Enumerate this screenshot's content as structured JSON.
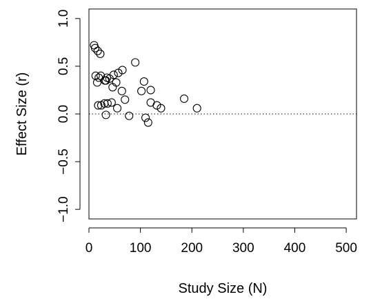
{
  "chart_data": {
    "type": "scatter",
    "xlabel": "Study Size (N)",
    "ylabel": "Effect Size (r)",
    "xlim": [
      0,
      520
    ],
    "ylim": [
      -1.1,
      1.1
    ],
    "x_ticks": [
      0,
      100,
      200,
      300,
      400,
      500
    ],
    "x_tick_labels": [
      "0",
      "100",
      "200",
      "300",
      "400",
      "500"
    ],
    "y_ticks": [
      -1.0,
      -0.5,
      0.0,
      0.5,
      1.0
    ],
    "y_tick_labels": [
      "−1.0",
      "−0.5",
      "0.0",
      "0.5",
      "1.0"
    ],
    "reference_line_y": 0,
    "grid": false,
    "legend": "none",
    "series": [
      {
        "x": [
          10,
          12,
          17,
          22,
          13,
          19,
          23,
          16,
          35,
          31,
          48,
          33,
          40,
          57,
          65,
          90,
          107,
          46,
          53,
          64,
          102,
          120,
          185,
          70,
          18,
          24,
          30,
          36,
          44,
          33,
          55,
          78,
          120,
          132,
          140,
          210,
          110,
          115
        ],
        "y": [
          0.72,
          0.69,
          0.66,
          0.63,
          0.4,
          0.38,
          0.4,
          0.33,
          0.38,
          0.35,
          0.41,
          0.35,
          0.37,
          0.43,
          0.46,
          0.54,
          0.34,
          0.28,
          0.33,
          0.24,
          0.24,
          0.25,
          0.16,
          0.15,
          0.09,
          0.09,
          0.11,
          0.11,
          0.12,
          -0.01,
          0.06,
          -0.02,
          0.12,
          0.09,
          0.06,
          0.06,
          -0.04,
          -0.09
        ]
      }
    ]
  }
}
